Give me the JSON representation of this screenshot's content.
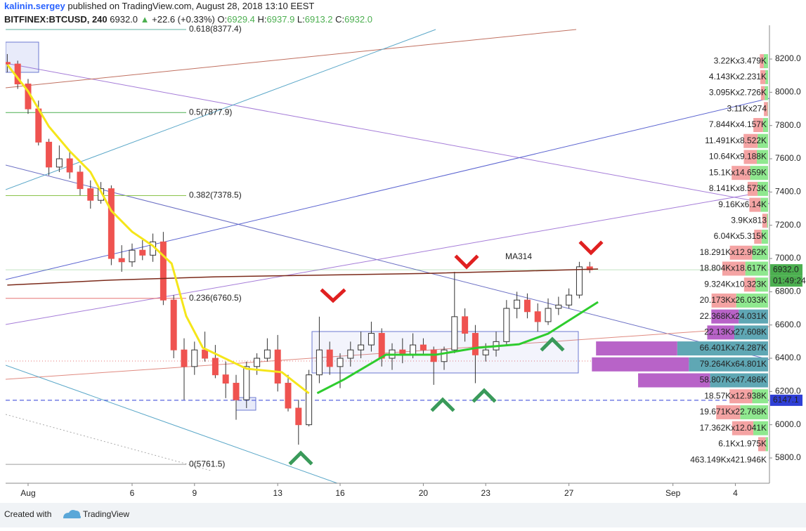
{
  "header": {
    "author": "kalinin.sergey",
    "published": "published on TradingView.com, August 28, 2018 13:10 EEST",
    "symbol": "BITFINEX:BTCUSD, 240",
    "last": "6932.0",
    "arrow": "▲",
    "change": "+22.6 (+0.33%)",
    "ohlc": [
      {
        "key": "O:",
        "value": "6929.4"
      },
      {
        "key": "H:",
        "value": "6937.9"
      },
      {
        "key": "L:",
        "value": "6913.2"
      },
      {
        "key": "C:",
        "value": "6932.0"
      }
    ]
  },
  "footer": {
    "created": "Created with",
    "brand": "TradingView"
  },
  "chart_data": {
    "type": "candlestick",
    "xlim": [
      -0.08,
      36.64
    ],
    "xticks": [
      {
        "value": 1,
        "label": "Aug"
      },
      6,
      9,
      13,
      16,
      20,
      23,
      27,
      {
        "value": 32,
        "label": "Sep"
      },
      {
        "value": 35,
        "label": "4"
      }
    ],
    "ylim": [
      5648,
      8403
    ],
    "yticks": [
      {
        "value": 5800,
        "label": "5800.0"
      },
      {
        "value": 6000,
        "label": "6000.0"
      },
      {
        "value": 6200,
        "label": "6200.0"
      },
      {
        "value": 6400,
        "label": "6400.0"
      },
      {
        "value": 6600,
        "label": "6600.0"
      },
      {
        "value": 6800,
        "label": "6800.0"
      },
      {
        "value": 7000,
        "label": "7000.0"
      },
      {
        "value": 7200,
        "label": "7200.0"
      },
      {
        "value": 7400,
        "label": "7400.0"
      },
      {
        "value": 7600,
        "label": "7600.0"
      },
      {
        "value": 7800,
        "label": "7800.0"
      },
      {
        "value": 8000,
        "label": "8000.0"
      },
      {
        "value": 8200,
        "label": "8200.0"
      }
    ],
    "up_color": "#ffffff",
    "down_color": "#ef5350",
    "candles": {
      "x": [
        0,
        0.5,
        1,
        1.5,
        2,
        2.5,
        3,
        3.5,
        4,
        4.5,
        5,
        5.5,
        6,
        6.5,
        7,
        7.5,
        8,
        8.5,
        9,
        9.5,
        10,
        10.5,
        11,
        11.5,
        12,
        12.5,
        13,
        13.5,
        14,
        14.5,
        15,
        15.5,
        16,
        16.5,
        17,
        17.5,
        18,
        18.5,
        19,
        19.5,
        20,
        20.5,
        21,
        21.5,
        22,
        22.5,
        23,
        23.5,
        24,
        24.5,
        25,
        25.5,
        26,
        26.5,
        27,
        27.5,
        28
      ],
      "open": [
        8180,
        8170,
        8050,
        7900,
        7700,
        7550,
        7600,
        7520,
        7420,
        7350,
        7420,
        7000,
        6980,
        7050,
        7020,
        7100,
        6750,
        6450,
        6350,
        6450,
        6400,
        6300,
        6250,
        6150,
        6350,
        6400,
        6450,
        6250,
        6100,
        6000,
        6300,
        6450,
        6350,
        6400,
        6450,
        6480,
        6550,
        6400,
        6450,
        6420,
        6480,
        6450,
        6380,
        6450,
        6650,
        6550,
        6420,
        6450,
        6500,
        6700,
        6750,
        6680,
        6620,
        6700,
        6720,
        6780,
        6950
      ],
      "high": [
        8230,
        8190,
        8080,
        7950,
        7720,
        7680,
        7650,
        7560,
        7470,
        7460,
        7440,
        7080,
        7090,
        7110,
        7150,
        7160,
        6780,
        6520,
        6500,
        6560,
        6480,
        6380,
        6300,
        6380,
        6430,
        6520,
        6540,
        6300,
        6150,
        6330,
        6650,
        6500,
        6430,
        6500,
        6560,
        6620,
        6580,
        6490,
        6520,
        6550,
        6520,
        6470,
        6470,
        6920,
        6700,
        6600,
        6490,
        6560,
        6750,
        6800,
        6790,
        6730,
        6760,
        6770,
        6820,
        6980,
        6980
      ],
      "low": [
        8120,
        8020,
        7870,
        7680,
        7500,
        7520,
        7480,
        7380,
        7300,
        7330,
        6960,
        6920,
        6950,
        6990,
        6980,
        6720,
        6400,
        6150,
        6300,
        6380,
        6280,
        6160,
        6030,
        6100,
        6300,
        6380,
        6200,
        6080,
        5880,
        5990,
        6250,
        6300,
        6220,
        6350,
        6400,
        6440,
        6350,
        6330,
        6370,
        6400,
        6420,
        6240,
        6330,
        6430,
        6500,
        6250,
        6380,
        6410,
        6480,
        6640,
        6640,
        6560,
        6600,
        6660,
        6700,
        6760,
        6913
      ],
      "close": [
        8170,
        8050,
        7900,
        7700,
        7550,
        7600,
        7520,
        7420,
        7350,
        7420,
        7000,
        6980,
        7050,
        7020,
        7100,
        6750,
        6450,
        6350,
        6450,
        6400,
        6300,
        6250,
        6150,
        6350,
        6400,
        6450,
        6250,
        6100,
        6000,
        6300,
        6450,
        6350,
        6400,
        6450,
        6480,
        6550,
        6400,
        6450,
        6420,
        6480,
        6450,
        6380,
        6450,
        6650,
        6550,
        6420,
        6450,
        6500,
        6700,
        6750,
        6680,
        6620,
        6700,
        6720,
        6780,
        6950,
        6932
      ]
    },
    "series": [
      {
        "name": "MA314",
        "color": "#7b2a1a",
        "x": [
          0,
          5,
          10,
          15,
          20,
          25,
          28.4
        ],
        "values": [
          6840,
          6870,
          6890,
          6900,
          6910,
          6925,
          6937
        ]
      },
      {
        "color": "#f5e61a",
        "x": [
          0,
          1,
          2,
          3,
          4,
          5,
          6,
          7,
          7.9,
          8.6,
          9.4,
          11.5,
          13.2,
          14.5
        ],
        "values": [
          8166,
          8006,
          7794,
          7646,
          7520,
          7287,
          7161,
          7076,
          6970,
          6654,
          6463,
          6337,
          6316,
          6189
        ]
      },
      {
        "color": "#2ecc2e",
        "x": [
          14.9,
          16.2,
          18.2,
          20.6,
          22.6,
          24.6,
          26,
          28.4
        ],
        "values": [
          6190,
          6273,
          6421,
          6421,
          6463,
          6484,
          6548,
          6738
        ]
      }
    ],
    "fib_levels": [
      {
        "label": "0.618(8377.4)",
        "value": 8377.4,
        "color": "#5fb3a0"
      },
      {
        "label": "0.5(7877.9)",
        "value": 7877.9,
        "color": "#4caf50"
      },
      {
        "label": "0.382(7378.5)",
        "value": 7378.5,
        "color": "#8bc34a"
      },
      {
        "label": "0.236(6760.5)",
        "value": 6760.5,
        "color": "#e57373"
      },
      {
        "label": "0(5761.5)",
        "value": 5761.5,
        "color": "#9e9e9e"
      }
    ],
    "price_labels": [
      {
        "label": "6932.0",
        "value": 6932.0,
        "color": "#4caf50",
        "sublabel": "01:49:24"
      },
      {
        "label": "6147.1",
        "value": 6147.1,
        "color": "#2f3fd6"
      }
    ],
    "volume_profile": {
      "colors": [
        "#f4a3a3",
        "#8fe88f"
      ],
      "highlight_colors": [
        "#b863c8",
        "#5fa7b4"
      ],
      "rows": [
        {
          "price": 8187,
          "label": "3.22Kx3.479K",
          "values": [
            3220,
            3479
          ],
          "highlight": false
        },
        {
          "price": 8091,
          "label": "4.143Kx2.231K",
          "values": [
            4143,
            2231
          ],
          "highlight": false
        },
        {
          "price": 7995,
          "label": "3.095Kx2.726K",
          "values": [
            3095,
            2726
          ],
          "highlight": false
        },
        {
          "price": 7899,
          "label": "3.11Kx274",
          "values": [
            3110,
            274
          ],
          "highlight": false
        },
        {
          "price": 7803,
          "label": "7.844Kx4.157K",
          "values": [
            7844,
            4157
          ],
          "highlight": false
        },
        {
          "price": 7707,
          "label": "11.491Kx8.522K",
          "values": [
            11491,
            8522
          ],
          "highlight": false
        },
        {
          "price": 7611,
          "label": "10.64Kx9.188K",
          "values": [
            10640,
            9188
          ],
          "highlight": false
        },
        {
          "price": 7515,
          "label": "15.1Kx14.659K",
          "values": [
            15100,
            14659
          ],
          "highlight": false
        },
        {
          "price": 7419,
          "label": "8.141Kx8.573K",
          "values": [
            8141,
            8573
          ],
          "highlight": false
        },
        {
          "price": 7323,
          "label": "9.16Kx6.14K",
          "values": [
            9160,
            6140
          ],
          "highlight": false
        },
        {
          "price": 7227,
          "label": "3.9Kx813",
          "values": [
            3900,
            813
          ],
          "highlight": false
        },
        {
          "price": 7131,
          "label": "6.04Kx5.315K",
          "values": [
            6040,
            5315
          ],
          "highlight": false
        },
        {
          "price": 7035,
          "label": "18.291Kx12.962K",
          "values": [
            18291,
            12962
          ],
          "highlight": false
        },
        {
          "price": 6939,
          "label": "18.804Kx18.617K",
          "values": [
            18804,
            18617
          ],
          "highlight": false
        },
        {
          "price": 6843,
          "label": "9.324Kx10.323K",
          "values": [
            9324,
            10323
          ],
          "highlight": false
        },
        {
          "price": 6747,
          "label": "20.173Kx26.033K",
          "values": [
            20173,
            26033
          ],
          "highlight": false
        },
        {
          "price": 6651,
          "label": "22.368Kx24.031K",
          "values": [
            22368,
            24031
          ],
          "highlight": true
        },
        {
          "price": 6555,
          "label": "22.13Kx27.608K",
          "values": [
            22130,
            27608
          ],
          "highlight": true
        },
        {
          "price": 6459,
          "label": "66.401Kx74.287K",
          "values": [
            66401,
            74287
          ],
          "highlight": true
        },
        {
          "price": 6363,
          "label": "79.264Kx64.801K",
          "values": [
            79264,
            64801
          ],
          "highlight": true
        },
        {
          "price": 6267,
          "label": "58.807Kx47.486K",
          "values": [
            58807,
            47486
          ],
          "highlight": true
        },
        {
          "price": 6171,
          "label": "18.57Kx12.938K",
          "values": [
            18570,
            12938
          ],
          "highlight": false
        },
        {
          "price": 6075,
          "label": "19.671Kx22.768K",
          "values": [
            19671,
            22768
          ],
          "highlight": false
        },
        {
          "price": 5979,
          "label": "17.362Kx12.041K",
          "values": [
            17362,
            12041
          ],
          "highlight": false
        },
        {
          "price": 5883,
          "label": "6.1Kx1.975K",
          "values": [
            6100,
            1975
          ],
          "highlight": false
        }
      ],
      "total": "463.149Kx421.946K"
    }
  }
}
